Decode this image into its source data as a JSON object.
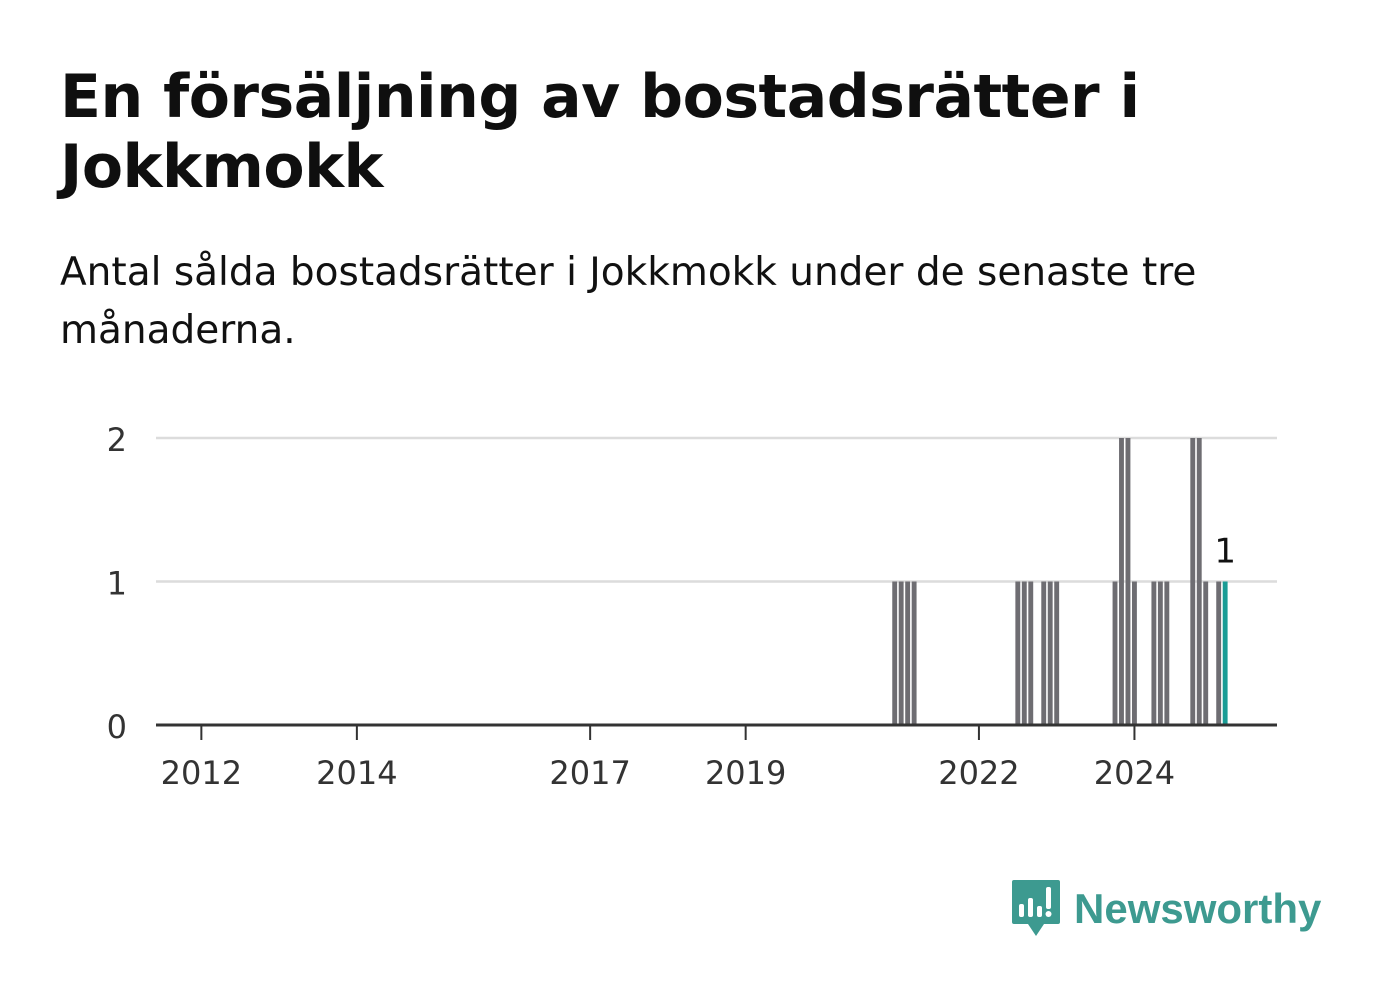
{
  "header": {
    "title": "En försäljning av bostadsrätter i Jokkmokk",
    "subtitle": "Antal sålda bostadsrätter i Jokkmokk under de senaste tre månaderna."
  },
  "brand": {
    "name": "Newsworthy",
    "color": "#3d9a90",
    "icon": "bar-chart-speech-bubble-icon"
  },
  "colors": {
    "bar": "#6e6d72",
    "highlight": "#1a9c95",
    "grid": "#dcdcdc",
    "axis": "#333333"
  },
  "chart_data": {
    "type": "bar",
    "title": "En försäljning av bostadsrätter i Jokkmokk",
    "subtitle": "Antal sålda bostadsrätter i Jokkmokk under de senaste tre månaderna.",
    "xlabel": "",
    "ylabel": "",
    "ylim": [
      0,
      2
    ],
    "y_ticks": [
      0,
      1,
      2
    ],
    "x_range": [
      "2011-06",
      "2025-11"
    ],
    "x_ticks": [
      {
        "date": "2012-01",
        "label": "2012"
      },
      {
        "date": "2014-01",
        "label": "2014"
      },
      {
        "date": "2017-01",
        "label": "2017"
      },
      {
        "date": "2019-01",
        "label": "2019"
      },
      {
        "date": "2022-01",
        "label": "2022"
      },
      {
        "date": "2024-01",
        "label": "2024"
      }
    ],
    "grid": true,
    "legend": "none",
    "series": [
      {
        "points": [
          {
            "date": "2020-12",
            "value": 1
          },
          {
            "date": "2021-01",
            "value": 1
          },
          {
            "date": "2021-02",
            "value": 1
          },
          {
            "date": "2021-03",
            "value": 1
          },
          {
            "date": "2022-07",
            "value": 1
          },
          {
            "date": "2022-08",
            "value": 1
          },
          {
            "date": "2022-09",
            "value": 1
          },
          {
            "date": "2022-11",
            "value": 1
          },
          {
            "date": "2022-12",
            "value": 1
          },
          {
            "date": "2023-01",
            "value": 1
          },
          {
            "date": "2023-10",
            "value": 1
          },
          {
            "date": "2023-11",
            "value": 2
          },
          {
            "date": "2023-12",
            "value": 2
          },
          {
            "date": "2024-01",
            "value": 1
          },
          {
            "date": "2024-04",
            "value": 1
          },
          {
            "date": "2024-05",
            "value": 1
          },
          {
            "date": "2024-06",
            "value": 1
          },
          {
            "date": "2024-10",
            "value": 2
          },
          {
            "date": "2024-11",
            "value": 2
          },
          {
            "date": "2024-12",
            "value": 1
          },
          {
            "date": "2025-02",
            "value": 1
          },
          {
            "date": "2025-03",
            "value": 1
          }
        ]
      }
    ],
    "highlight": {
      "date": "2025-03",
      "value": 1,
      "label": "1"
    }
  }
}
